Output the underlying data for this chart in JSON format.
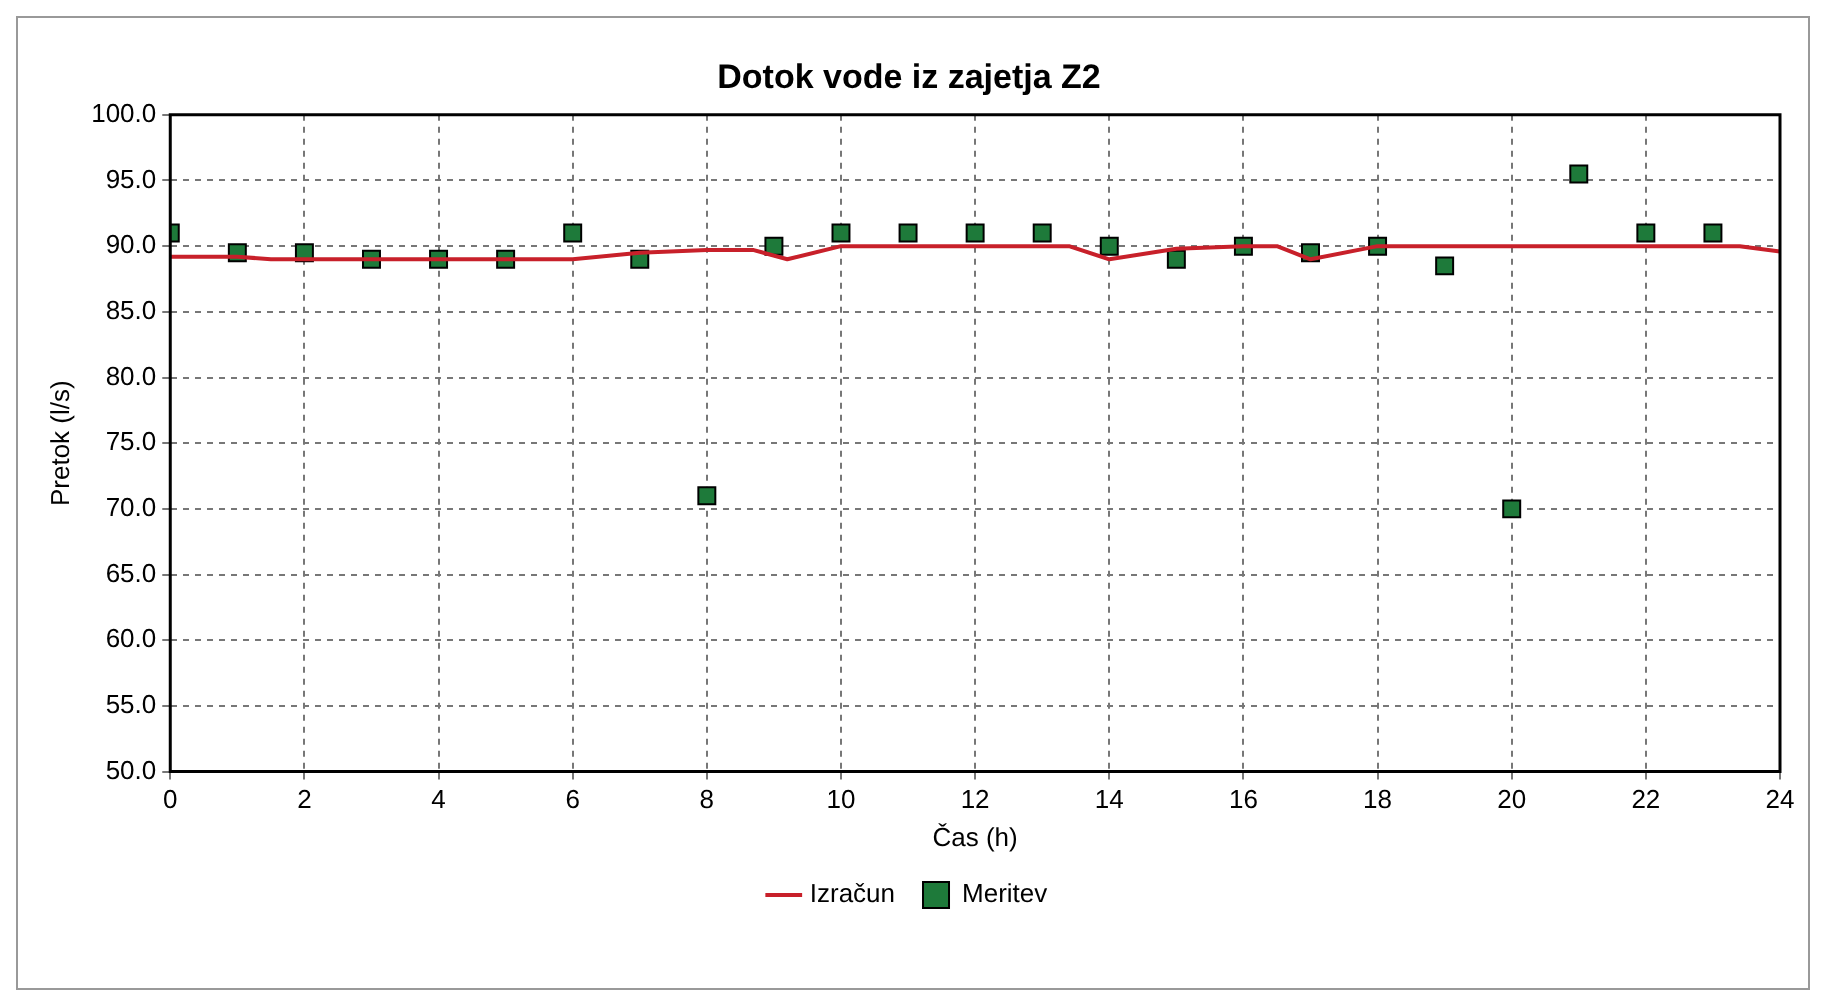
{
  "chart_data": {
    "type": "line",
    "title": "Dotok vode iz zajetja Z2",
    "xlabel": "Čas (h)",
    "ylabel": "Pretok (l/s)",
    "series": [
      {
        "name": "Izračun",
        "type": "line",
        "color": "#c8202a",
        "marker": "none",
        "x": [
          0,
          1,
          1.5,
          6,
          7,
          8,
          8.7,
          9.2,
          10,
          13.4,
          14,
          15,
          16,
          16.5,
          17,
          18,
          23.4,
          24
        ],
        "values": [
          89.2,
          89.2,
          89,
          89,
          89.5,
          89.7,
          89.7,
          89,
          90,
          90,
          89,
          89.8,
          90,
          90,
          89,
          90,
          90,
          89.6
        ]
      },
      {
        "name": "Meritev",
        "type": "scatter",
        "color": "#1e7a3a",
        "marker": "square",
        "x": [
          0,
          1,
          2,
          3,
          4,
          5,
          6,
          7,
          8,
          9,
          10,
          11,
          12,
          13,
          14,
          15,
          16,
          17,
          18,
          19,
          20,
          21,
          22,
          23
        ],
        "values": [
          91,
          89.5,
          89.5,
          89,
          89,
          89,
          91,
          89,
          71,
          90,
          91,
          91,
          91,
          91,
          90,
          89,
          90,
          89.5,
          90,
          88.5,
          70,
          95.5,
          91,
          91
        ]
      }
    ],
    "xlim": [
      0,
      24
    ],
    "xticks": [
      0,
      2,
      4,
      6,
      8,
      10,
      12,
      14,
      16,
      18,
      20,
      22,
      24
    ],
    "ylim": [
      50,
      100
    ],
    "yticks": [
      {
        "value": 50,
        "label": "50.0"
      },
      {
        "value": 55,
        "label": "55.0"
      },
      {
        "value": 60,
        "label": "60.0"
      },
      {
        "value": 65,
        "label": "65.0"
      },
      {
        "value": 70,
        "label": "70.0"
      },
      {
        "value": 75,
        "label": "75.0"
      },
      {
        "value": 80,
        "label": "80.0"
      },
      {
        "value": 85,
        "label": "85.0"
      },
      {
        "value": 90,
        "label": "90.0"
      },
      {
        "value": 95,
        "label": "95.0"
      },
      {
        "value": 100,
        "label": "100.0"
      }
    ],
    "grid": true,
    "legend": "bottom"
  }
}
